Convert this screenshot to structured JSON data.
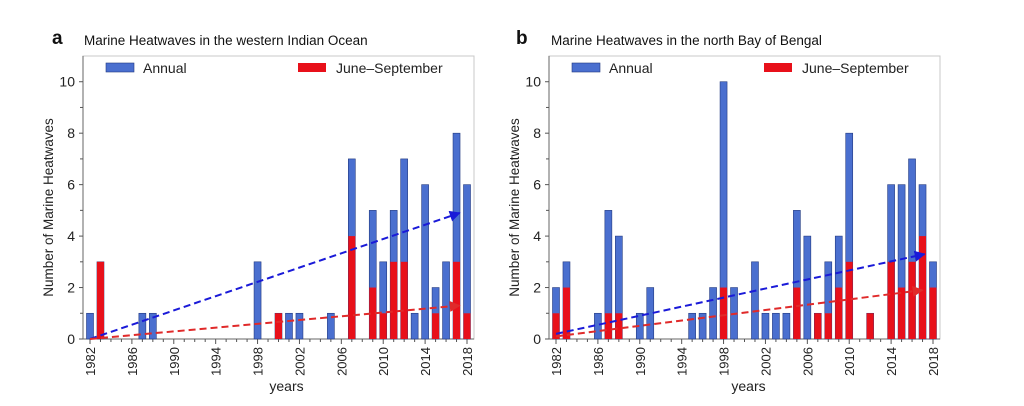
{
  "figure": {
    "colors": {
      "annual": "#4a6fcf",
      "annual_edge": "#233a80",
      "jjas": "#e8101a",
      "trend_annual": "#1a1ad8",
      "trend_jjas": "#e02a2a",
      "axis": "#999999"
    }
  },
  "chart_data": [
    {
      "panel_letter": "a",
      "type": "bar",
      "stacked_overlay": true,
      "title": "Marine Heatwaves in the western Indian Ocean",
      "xlabel": "years",
      "ylabel": "Number of Marine Heatwaves",
      "xlim": [
        1982,
        2018
      ],
      "ylim": [
        0,
        11
      ],
      "xticks": [
        "1982",
        "1986",
        "1990",
        "1994",
        "1998",
        "2002",
        "2006",
        "2010",
        "2014",
        "2018"
      ],
      "yticks": [
        "0",
        "2",
        "4",
        "6",
        "8",
        "10"
      ],
      "legend": [
        "Annual",
        "June–September"
      ],
      "legend_position": "top",
      "years": [
        1982,
        1983,
        1987,
        1988,
        1998,
        2000,
        2001,
        2002,
        2005,
        2007,
        2009,
        2010,
        2011,
        2012,
        2013,
        2014,
        2015,
        2016,
        2017,
        2018
      ],
      "series": [
        {
          "name": "Annual",
          "values": [
            1,
            3,
            1,
            1,
            3,
            1,
            1,
            1,
            1,
            7,
            5,
            3,
            5,
            7,
            1,
            6,
            2,
            3,
            8,
            6
          ]
        },
        {
          "name": "June–September",
          "values": [
            0,
            3,
            0,
            0,
            0,
            1,
            0,
            0,
            0,
            4,
            2,
            1,
            3,
            3,
            0,
            0,
            1,
            0,
            3,
            1
          ]
        }
      ],
      "trends": [
        {
          "name": "Annual trend",
          "from": [
            1982,
            0.0
          ],
          "to": [
            2017.3,
            4.9
          ]
        },
        {
          "name": "June–September trend",
          "from": [
            1982,
            0.0
          ],
          "to": [
            2017.3,
            1.3
          ]
        }
      ]
    },
    {
      "panel_letter": "b",
      "type": "bar",
      "stacked_overlay": true,
      "title": "Marine Heatwaves in the north Bay of Bengal",
      "xlabel": "years",
      "ylabel": "Number of Marine Heatwaves",
      "xlim": [
        1982,
        2018
      ],
      "ylim": [
        0,
        11
      ],
      "xticks": [
        "1982",
        "1986",
        "1990",
        "1994",
        "1998",
        "2002",
        "2006",
        "2010",
        "2014",
        "2018"
      ],
      "yticks": [
        "0",
        "2",
        "4",
        "6",
        "8",
        "10"
      ],
      "legend": [
        "Annual",
        "June–September"
      ],
      "legend_position": "top",
      "years": [
        1982,
        1983,
        1986,
        1987,
        1988,
        1990,
        1991,
        1995,
        1996,
        1997,
        1998,
        1999,
        2001,
        2002,
        2003,
        2004,
        2005,
        2006,
        2007,
        2008,
        2009,
        2010,
        2012,
        2014,
        2015,
        2016,
        2017,
        2018
      ],
      "series": [
        {
          "name": "Annual",
          "values": [
            2,
            3,
            1,
            5,
            4,
            1,
            2,
            1,
            1,
            2,
            10,
            2,
            3,
            1,
            1,
            1,
            5,
            4,
            1,
            3,
            4,
            8,
            1,
            6,
            6,
            7,
            6,
            3
          ]
        },
        {
          "name": "June–September",
          "values": [
            1,
            2,
            0,
            1,
            1,
            0,
            0,
            0,
            0,
            0,
            2,
            0,
            0,
            0,
            0,
            0,
            2,
            0,
            1,
            1,
            2,
            3,
            1,
            3,
            2,
            3,
            4,
            2
          ]
        }
      ],
      "trends": [
        {
          "name": "Annual trend",
          "from": [
            1982,
            0.2
          ],
          "to": [
            2017.2,
            3.3
          ]
        },
        {
          "name": "June–September trend",
          "from": [
            1982,
            0.1
          ],
          "to": [
            2017.0,
            1.9
          ]
        }
      ]
    }
  ]
}
